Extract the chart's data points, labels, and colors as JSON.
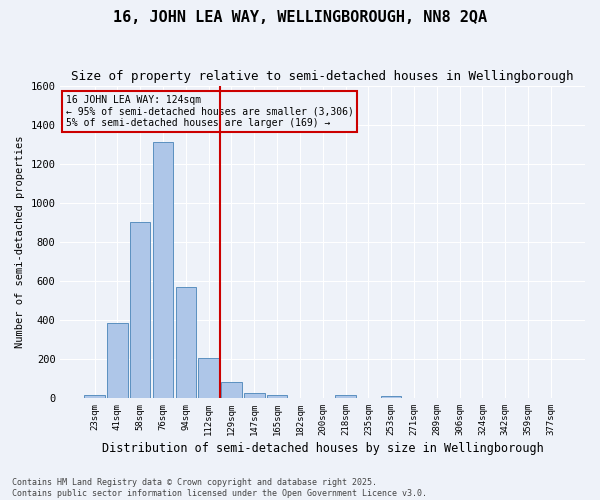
{
  "title": "16, JOHN LEA WAY, WELLINGBOROUGH, NN8 2QA",
  "subtitle": "Size of property relative to semi-detached houses in Wellingborough",
  "xlabel": "Distribution of semi-detached houses by size in Wellingborough",
  "ylabel": "Number of semi-detached properties",
  "categories": [
    "23sqm",
    "41sqm",
    "58sqm",
    "76sqm",
    "94sqm",
    "112sqm",
    "129sqm",
    "147sqm",
    "165sqm",
    "182sqm",
    "200sqm",
    "218sqm",
    "235sqm",
    "253sqm",
    "271sqm",
    "289sqm",
    "306sqm",
    "324sqm",
    "342sqm",
    "359sqm",
    "377sqm"
  ],
  "values": [
    15,
    385,
    900,
    1310,
    570,
    205,
    80,
    25,
    15,
    0,
    0,
    15,
    0,
    10,
    0,
    0,
    0,
    0,
    0,
    0,
    0
  ],
  "bar_color": "#aec6e8",
  "bar_edge_color": "#5b90c0",
  "vline_color": "#cc0000",
  "annotation_line1": "16 JOHN LEA WAY: 124sqm",
  "annotation_line2": "← 95% of semi-detached houses are smaller (3,306)",
  "annotation_line3": "5% of semi-detached houses are larger (169) →",
  "ylim": [
    0,
    1600
  ],
  "yticks": [
    0,
    200,
    400,
    600,
    800,
    1000,
    1200,
    1400,
    1600
  ],
  "footnote": "Contains HM Land Registry data © Crown copyright and database right 2025.\nContains public sector information licensed under the Open Government Licence v3.0.",
  "bg_color": "#eef2f9",
  "grid_color": "#ffffff"
}
